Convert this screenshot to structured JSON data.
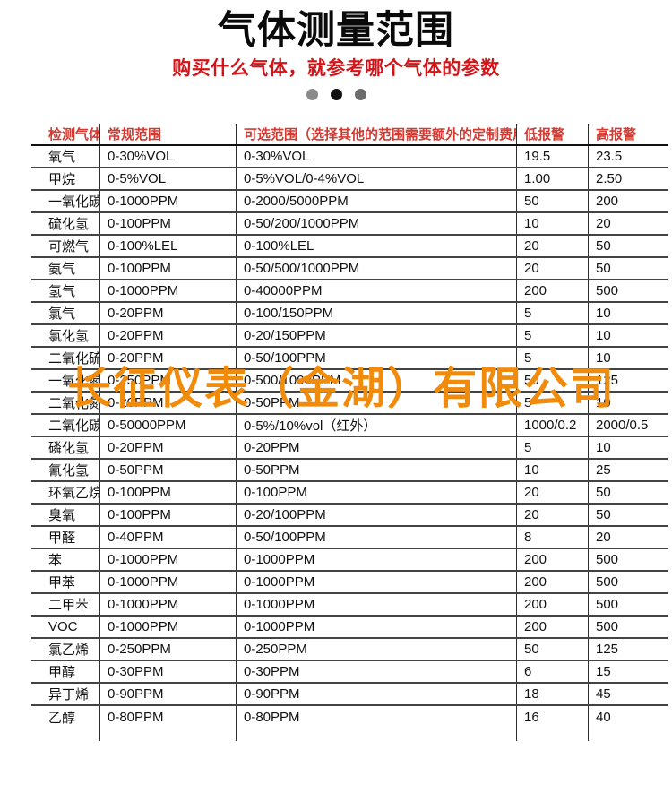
{
  "header": {
    "title": "气体测量范围",
    "subtitle": "购买什么气体，就参考哪个气体的参数",
    "dot_colors": [
      "#8a8a8a",
      "#101010",
      "#6d6d6d"
    ]
  },
  "watermark_text": "长征仪表（金湖）有限公司",
  "colors": {
    "title_black": "#0a0a0a",
    "subtitle_red": "#d31418",
    "table_header_red": "#d23a32",
    "watermark_orange": "#f18b0c"
  },
  "table": {
    "columns": [
      "检测气体",
      "常规范围",
      "可选范围（选择其他的范围需要额外的定制费用）",
      "低报警",
      "高报警"
    ],
    "rows": [
      [
        "氧气",
        "0-30%VOL",
        "0-30%VOL",
        "19.5",
        "23.5"
      ],
      [
        "甲烷",
        "0-5%VOL",
        "0-5%VOL/0-4%VOL",
        "1.00",
        "2.50"
      ],
      [
        "一氧化碳",
        "0-1000PPM",
        "0-2000/5000PPM",
        "50",
        "200"
      ],
      [
        "硫化氢",
        "0-100PPM",
        "0-50/200/1000PPM",
        "10",
        "20"
      ],
      [
        "可燃气",
        "0-100%LEL",
        "0-100%LEL",
        "20",
        "50"
      ],
      [
        "氨气",
        "0-100PPM",
        "0-50/500/1000PPM",
        "20",
        "50"
      ],
      [
        "氢气",
        "0-1000PPM",
        "0-40000PPM",
        "200",
        "500"
      ],
      [
        "氯气",
        "0-20PPM",
        "0-100/150PPM",
        "5",
        "10"
      ],
      [
        "氯化氢",
        "0-20PPM",
        "0-20/150PPM",
        "5",
        "10"
      ],
      [
        "二氧化硫",
        "0-20PPM",
        "0-50/100PPM",
        "5",
        "10"
      ],
      [
        "一氧化氮",
        "0-250PPM",
        "0-500/1000PPM",
        "50",
        "125"
      ],
      [
        "二氧化氮",
        "0-20PPM",
        "0-50PPM",
        "5",
        "10"
      ],
      [
        "二氧化碳",
        "0-50000PPM",
        "0-5%/10%vol（红外）",
        "1000/0.2",
        "2000/0.5"
      ],
      [
        "磷化氢",
        "0-20PPM",
        "0-20PPM",
        "5",
        "10"
      ],
      [
        "氰化氢",
        "0-50PPM",
        "0-50PPM",
        "10",
        "25"
      ],
      [
        "环氧乙烷",
        "0-100PPM",
        "0-100PPM",
        "20",
        "50"
      ],
      [
        "臭氧",
        "0-100PPM",
        "0-20/100PPM",
        "20",
        "50"
      ],
      [
        "甲醛",
        "0-40PPM",
        "0-50/100PPM",
        "8",
        "20"
      ],
      [
        "苯",
        "0-1000PPM",
        "0-1000PPM",
        "200",
        "500"
      ],
      [
        "甲苯",
        "0-1000PPM",
        "0-1000PPM",
        "200",
        "500"
      ],
      [
        "二甲苯",
        "0-1000PPM",
        "0-1000PPM",
        "200",
        "500"
      ],
      [
        "VOC",
        "0-1000PPM",
        "0-1000PPM",
        "200",
        "500"
      ],
      [
        "氯乙烯",
        "0-250PPM",
        "0-250PPM",
        "50",
        "125"
      ],
      [
        "甲醇",
        "0-30PPM",
        "0-30PPM",
        "6",
        "15"
      ],
      [
        "异丁烯",
        "0-90PPM",
        "0-90PPM",
        "18",
        "45"
      ],
      [
        "乙醇",
        "0-80PPM",
        "0-80PPM",
        "16",
        "40"
      ]
    ]
  }
}
